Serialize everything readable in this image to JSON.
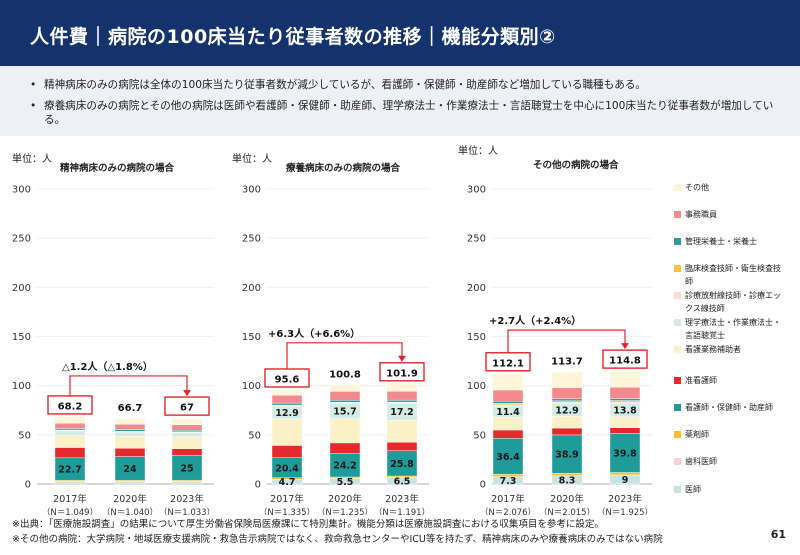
{
  "header": {
    "title": "人件費｜病院の100床当たり従事者数の推移｜機能分類別②"
  },
  "summary": {
    "bullets": [
      "精神病床のみの病院は全体の100床当たり従事者数が減少しているが、看護師・保健師・助産師など増加している職種もある。",
      "療養病床のみの病院とその他の病院は医師や看護師・保健師・助産師、理学療法士・作業療法士・言語聴覚士を中心に100床当たり従事者数が増加している。"
    ]
  },
  "colors": {
    "header_bg": "#14326b",
    "annotation_red": "#e0262b",
    "highlight_box": "#e0262b"
  },
  "legend": [
    {
      "label": "その他",
      "color": "#fff6d9"
    },
    {
      "label": "事務職員",
      "color": "#f28a8e"
    },
    {
      "label": "管理栄養士・栄養士",
      "color": "#2e9c9c"
    },
    {
      "label": "臨床検査技師・衛生検査技師",
      "color": "#f5c342"
    },
    {
      "label": "診療放射線技師・診療エックス線技師",
      "color": "#fbdcdc"
    },
    {
      "label": "理学療法士・作業療法士・言語聴覚士",
      "color": "#d4ebe6"
    },
    {
      "label": "看護業務補助者",
      "color": "#fbf1c9"
    },
    {
      "label": "准看護師",
      "color": "#e52a2e"
    },
    {
      "label": "看護師・保健師・助産師",
      "color": "#1f9b99"
    },
    {
      "label": "薬剤師",
      "color": "#f6c030"
    },
    {
      "label": "歯科医師",
      "color": "#f9d1d1"
    },
    {
      "label": "医師",
      "color": "#c8e3e0"
    }
  ],
  "chart_data": [
    {
      "type": "bar",
      "stacked": true,
      "title": "精神病床のみの病院の場合",
      "unit": "単位：人",
      "categories": [
        "2017年",
        "2020年",
        "2023年"
      ],
      "n_labels": [
        "（N＝1,049）",
        "（N＝1,040）",
        "（N＝1,033）"
      ],
      "ylim": [
        0,
        300
      ],
      "yticks": [
        0,
        50,
        100,
        150,
        200,
        250,
        300
      ],
      "totals": [
        68.2,
        66.7,
        67
      ],
      "highlight_totals": [
        true,
        false,
        true
      ],
      "series": [
        {
          "name": "医師",
          "values": [
            2.5,
            2.5,
            2.5
          ]
        },
        {
          "name": "歯科医師",
          "values": [
            0.1,
            0.1,
            0.1
          ]
        },
        {
          "name": "薬剤師",
          "values": [
            1.3,
            1.3,
            1.3
          ]
        },
        {
          "name": "看護師・保健師・助産師",
          "values": [
            22.7,
            24,
            25
          ]
        },
        {
          "name": "准看護師",
          "values": [
            10.5,
            8.5,
            7
          ]
        },
        {
          "name": "看護業務補助者",
          "values": [
            12.5,
            12,
            12
          ]
        },
        {
          "name": "理学療法士・作業療法士・言語聴覚士",
          "values": [
            4.5,
            4.5,
            4.5
          ]
        },
        {
          "name": "診療放射線技師・診療エックス線技師",
          "values": [
            0.4,
            0.4,
            0.4
          ]
        },
        {
          "name": "臨床検査技師・衛生検査技師",
          "values": [
            0.4,
            0.4,
            0.4
          ]
        },
        {
          "name": "管理栄養士・栄養士",
          "values": [
            1.5,
            1.5,
            1.5
          ]
        },
        {
          "name": "事務職員",
          "values": [
            5.5,
            5.5,
            5.5
          ]
        },
        {
          "name": "その他",
          "values": [
            6.3,
            6.0,
            6.8
          ]
        }
      ],
      "segment_labels": [
        {
          "series": "看護師・保健師・助産師",
          "values": [
            "22.7",
            "24",
            "25"
          ]
        }
      ],
      "annotation": "△1.2人（△1.8%）",
      "annotation_from": 0,
      "annotation_to": 2
    },
    {
      "type": "bar",
      "stacked": true,
      "title": "療養病床のみの病院の場合",
      "unit": "単位：人",
      "categories": [
        "2017年",
        "2020年",
        "2023年"
      ],
      "n_labels": [
        "（N＝1,335）",
        "（N＝1,235）",
        "（N＝1,191）"
      ],
      "ylim": [
        0,
        300
      ],
      "yticks": [
        0,
        50,
        100,
        150,
        200,
        250,
        300
      ],
      "totals": [
        95.6,
        100.8,
        101.9
      ],
      "highlight_totals": [
        true,
        false,
        true
      ],
      "series": [
        {
          "name": "医師",
          "values": [
            4.7,
            5.5,
            6.5
          ]
        },
        {
          "name": "歯科医師",
          "values": [
            0.1,
            0.1,
            0.1
          ]
        },
        {
          "name": "薬剤師",
          "values": [
            1.5,
            1.5,
            1.5
          ]
        },
        {
          "name": "看護師・保健師・助産師",
          "values": [
            20.4,
            24.2,
            25.8
          ]
        },
        {
          "name": "准看護師",
          "values": [
            12.5,
            10.5,
            8.5
          ]
        },
        {
          "name": "看護業務補助者",
          "values": [
            27,
            24.5,
            22.5
          ]
        },
        {
          "name": "理学療法士・作業療法士・言語聴覚士",
          "values": [
            12.9,
            15.7,
            17.2
          ]
        },
        {
          "name": "診療放射線技師・診療エックス線技師",
          "values": [
            0.6,
            0.6,
            0.6
          ]
        },
        {
          "name": "臨床検査技師・衛生検査技師",
          "values": [
            0.6,
            0.6,
            0.6
          ]
        },
        {
          "name": "管理栄養士・栄養士",
          "values": [
            2,
            2,
            2
          ]
        },
        {
          "name": "事務職員",
          "values": [
            8,
            9,
            9
          ]
        },
        {
          "name": "その他",
          "values": [
            5.3,
            6.6,
            7.6
          ]
        }
      ],
      "segment_labels": [
        {
          "series": "医師",
          "values": [
            "4.7",
            "5.5",
            "6.5"
          ]
        },
        {
          "series": "看護師・保健師・助産師",
          "values": [
            "20.4",
            "24.2",
            "25.8"
          ]
        },
        {
          "series": "理学療法士・作業療法士・言語聴覚士",
          "values": [
            "12.9",
            "15.7",
            "17.2"
          ]
        }
      ],
      "annotation": "+6.3人（+6.6%）",
      "annotation_from": 0,
      "annotation_to": 2
    },
    {
      "type": "bar",
      "stacked": true,
      "title": "その他の病院の場合",
      "unit": "単位：人",
      "categories": [
        "2017年",
        "2020年",
        "2023年"
      ],
      "n_labels": [
        "（N＝2,076）",
        "（N＝2,015）",
        "（N＝1,925）"
      ],
      "ylim": [
        0,
        300
      ],
      "yticks": [
        0,
        50,
        100,
        150,
        200,
        250,
        300
      ],
      "totals": [
        112.1,
        113.7,
        114.8
      ],
      "highlight_totals": [
        true,
        false,
        true
      ],
      "series": [
        {
          "name": "医師",
          "values": [
            7.3,
            8.3,
            9
          ]
        },
        {
          "name": "歯科医師",
          "values": [
            0.2,
            0.2,
            0.2
          ]
        },
        {
          "name": "薬剤師",
          "values": [
            2.5,
            2.5,
            2.5
          ]
        },
        {
          "name": "看護師・保健師・助産師",
          "values": [
            36.4,
            38.9,
            39.8
          ]
        },
        {
          "name": "准看護師",
          "values": [
            8.5,
            7,
            5.8
          ]
        },
        {
          "name": "看護業務補助者",
          "values": [
            13,
            12,
            11
          ]
        },
        {
          "name": "理学療法士・作業療法士・言語聴覚士",
          "values": [
            11.4,
            12.9,
            13.8
          ]
        },
        {
          "name": "診療放射線技師・診療エックス線技師",
          "values": [
            1.3,
            1.3,
            1.3
          ]
        },
        {
          "name": "臨床検査技師・衛生検査技師",
          "values": [
            1.5,
            1.5,
            1.5
          ]
        },
        {
          "name": "管理栄養士・栄養士",
          "values": [
            2,
            2,
            2
          ]
        },
        {
          "name": "事務職員",
          "values": [
            11.5,
            11.5,
            11.5
          ]
        },
        {
          "name": "その他",
          "values": [
            16.5,
            15.6,
            16.4
          ]
        }
      ],
      "segment_labels": [
        {
          "series": "医師",
          "values": [
            "7.3",
            "8.3",
            "9"
          ]
        },
        {
          "series": "看護師・保健師・助産師",
          "values": [
            "36.4",
            "38.9",
            "39.8"
          ]
        },
        {
          "series": "理学療法士・作業療法士・言語聴覚士",
          "values": [
            "11.4",
            "12.9",
            "13.8"
          ]
        }
      ],
      "annotation": "+2.7人（+2.4%）",
      "annotation_from": 0,
      "annotation_to": 2
    }
  ],
  "footer": {
    "source": "※出典：「医療施設調査」の結果について厚生労働省保険局医療課にて特別集計。機能分類は医療施設調査における収集項目を参考に設定。",
    "note": "※その他の病院：大学病院・地域医療支援病院・救急告示病院ではなく、救命救急センターやICU等を持たず、精神病床のみや療養病床のみではない病院"
  },
  "page_number": "61"
}
